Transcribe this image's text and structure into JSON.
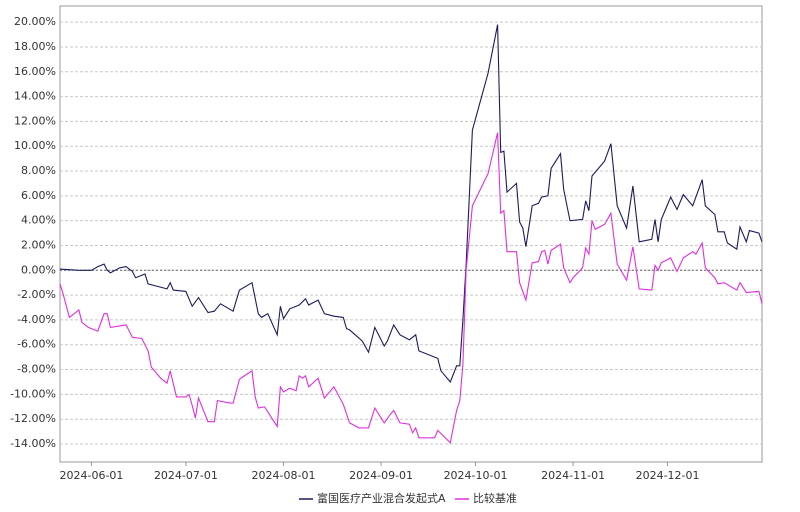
{
  "chart_data": {
    "type": "line",
    "xlim": [
      "2024-05-22",
      "2024-12-31"
    ],
    "xticks": [
      "2024-06-01",
      "2024-07-01",
      "2024-08-01",
      "2024-09-01",
      "2024-10-01",
      "2024-11-01",
      "2024-12-01"
    ],
    "ylim": [
      -15.45,
      21.3
    ],
    "yticks": [
      {
        "value": -14,
        "label": "-14.00%"
      },
      {
        "value": -12,
        "label": "-12.00%"
      },
      {
        "value": -10,
        "label": "-10.00%"
      },
      {
        "value": -8,
        "label": "-8.00%"
      },
      {
        "value": -6,
        "label": "-6.00%"
      },
      {
        "value": -4,
        "label": "-4.00%"
      },
      {
        "value": -2,
        "label": "-2.00%"
      },
      {
        "value": 0,
        "label": "0.00%"
      },
      {
        "value": 2,
        "label": "2.00%"
      },
      {
        "value": 4,
        "label": "4.00%"
      },
      {
        "value": 6,
        "label": "6.00%"
      },
      {
        "value": 8,
        "label": "8.00%"
      },
      {
        "value": 10,
        "label": "10.00%"
      },
      {
        "value": 12,
        "label": "12.00%"
      },
      {
        "value": 14,
        "label": "14.00%"
      },
      {
        "value": 16,
        "label": "16.00%"
      },
      {
        "value": 18,
        "label": "18.00%"
      },
      {
        "value": 20,
        "label": "20.00%"
      }
    ],
    "grid": true,
    "legend": "bottom",
    "series": [
      {
        "name": "富国医疗产业混合发起式A",
        "color": "#1c1c5c",
        "x": [
          "2024-05-22",
          "2024-05-28",
          "2024-06-01",
          "2024-06-03",
          "2024-06-05",
          "2024-06-06",
          "2024-06-07",
          "2024-06-10",
          "2024-06-12",
          "2024-06-14",
          "2024-06-15",
          "2024-06-18",
          "2024-06-19",
          "2024-06-22",
          "2024-06-25",
          "2024-06-26",
          "2024-06-27",
          "2024-07-01",
          "2024-07-03",
          "2024-07-05",
          "2024-07-08",
          "2024-07-10",
          "2024-07-12",
          "2024-07-16",
          "2024-07-18",
          "2024-07-22",
          "2024-07-24",
          "2024-07-25",
          "2024-07-27",
          "2024-07-30",
          "2024-07-31",
          "2024-08-01",
          "2024-08-03",
          "2024-08-06",
          "2024-08-08",
          "2024-08-09",
          "2024-08-12",
          "2024-08-14",
          "2024-08-17",
          "2024-08-20",
          "2024-08-21",
          "2024-08-22",
          "2024-08-26",
          "2024-08-28",
          "2024-08-30",
          "2024-09-02",
          "2024-09-03",
          "2024-09-05",
          "2024-09-07",
          "2024-09-10",
          "2024-09-12",
          "2024-09-13",
          "2024-09-19",
          "2024-09-20",
          "2024-09-23",
          "2024-09-25",
          "2024-09-26",
          "2024-09-27",
          "2024-09-28",
          "2024-09-30",
          "2024-10-05",
          "2024-10-08",
          "2024-10-09",
          "2024-10-10",
          "2024-10-11",
          "2024-10-14",
          "2024-10-15",
          "2024-10-16",
          "2024-10-17",
          "2024-10-19",
          "2024-10-21",
          "2024-10-22",
          "2024-10-24",
          "2024-10-25",
          "2024-10-28",
          "2024-10-29",
          "2024-10-31",
          "2024-11-04",
          "2024-11-05",
          "2024-11-06",
          "2024-11-07",
          "2024-11-11",
          "2024-11-13",
          "2024-11-15",
          "2024-11-18",
          "2024-11-20",
          "2024-11-22",
          "2024-11-26",
          "2024-11-27",
          "2024-11-28",
          "2024-11-29",
          "2024-12-02",
          "2024-12-04",
          "2024-12-06",
          "2024-12-09",
          "2024-12-12",
          "2024-12-13",
          "2024-12-16",
          "2024-12-17",
          "2024-12-19",
          "2024-12-20",
          "2024-12-23",
          "2024-12-24",
          "2024-12-26",
          "2024-12-27",
          "2024-12-30",
          "2024-12-31"
        ],
        "values": [
          0.1,
          0,
          0,
          0.3,
          0.5,
          0,
          -0.2,
          0.2,
          0.3,
          -0.1,
          -0.6,
          -0.3,
          -1.1,
          -1.3,
          -1.5,
          -1.0,
          -1.6,
          -1.7,
          -2.9,
          -2.2,
          -3.4,
          -3.3,
          -2.7,
          -3.3,
          -1.6,
          -1.0,
          -3.5,
          -3.8,
          -3.5,
          -5.2,
          -2.9,
          -3.9,
          -3.1,
          -2.8,
          -2.3,
          -2.8,
          -2.4,
          -3.5,
          -3.7,
          -3.8,
          -4.7,
          -4.8,
          -5.7,
          -6.6,
          -4.6,
          -6.1,
          -5.7,
          -4.4,
          -5.2,
          -5.6,
          -5.2,
          -6.5,
          -7.1,
          -8.1,
          -9.0,
          -7.7,
          -7.7,
          -4.0,
          0.4,
          11.3,
          15.9,
          19.8,
          9.5,
          9.6,
          6.3,
          7.0,
          3.9,
          3.4,
          1.9,
          5.2,
          5.4,
          5.9,
          6.0,
          8.2,
          9.4,
          6.5,
          4.0,
          4.1,
          5.6,
          4.8,
          7.6,
          8.8,
          10.2,
          5.2,
          3.4,
          6.8,
          2.3,
          2.5,
          4.1,
          2.3,
          4.1,
          5.9,
          4.9,
          6.1,
          5.2,
          7.3,
          5.2,
          4.5,
          3.1,
          3.1,
          2.2,
          1.7,
          3.5,
          2.3,
          3.2,
          3.0,
          2.3
        ]
      },
      {
        "name": "比较基准",
        "color": "#e22ee2",
        "x": [
          "2024-05-22",
          "2024-05-23",
          "2024-05-25",
          "2024-05-28",
          "2024-05-29",
          "2024-05-31",
          "2024-06-03",
          "2024-06-05",
          "2024-06-06",
          "2024-06-07",
          "2024-06-12",
          "2024-06-14",
          "2024-06-17",
          "2024-06-19",
          "2024-06-20",
          "2024-06-23",
          "2024-06-25",
          "2024-06-26",
          "2024-06-28",
          "2024-07-01",
          "2024-07-02",
          "2024-07-03",
          "2024-07-04",
          "2024-07-05",
          "2024-07-08",
          "2024-07-10",
          "2024-07-11",
          "2024-07-15",
          "2024-07-16",
          "2024-07-18",
          "2024-07-19",
          "2024-07-22",
          "2024-07-23",
          "2024-07-24",
          "2024-07-26",
          "2024-07-30",
          "2024-07-31",
          "2024-08-01",
          "2024-08-03",
          "2024-08-05",
          "2024-08-06",
          "2024-08-07",
          "2024-08-08",
          "2024-08-09",
          "2024-08-12",
          "2024-08-14",
          "2024-08-17",
          "2024-08-20",
          "2024-08-22",
          "2024-08-25",
          "2024-08-28",
          "2024-08-30",
          "2024-09-02",
          "2024-09-04",
          "2024-09-05",
          "2024-09-07",
          "2024-09-10",
          "2024-09-11",
          "2024-09-12",
          "2024-09-13",
          "2024-09-18",
          "2024-09-19",
          "2024-09-23",
          "2024-09-25",
          "2024-09-26",
          "2024-09-27",
          "2024-09-28",
          "2024-09-30",
          "2024-10-05",
          "2024-10-08",
          "2024-10-09",
          "2024-10-10",
          "2024-10-11",
          "2024-10-14",
          "2024-10-15",
          "2024-10-17",
          "2024-10-19",
          "2024-10-21",
          "2024-10-22",
          "2024-10-23",
          "2024-10-24",
          "2024-10-25",
          "2024-10-28",
          "2024-10-29",
          "2024-10-31",
          "2024-11-01",
          "2024-11-04",
          "2024-11-05",
          "2024-11-06",
          "2024-11-07",
          "2024-11-08",
          "2024-11-11",
          "2024-11-13",
          "2024-11-15",
          "2024-11-18",
          "2024-11-20",
          "2024-11-22",
          "2024-11-26",
          "2024-11-27",
          "2024-11-28",
          "2024-11-29",
          "2024-12-02",
          "2024-12-04",
          "2024-12-06",
          "2024-12-09",
          "2024-12-10",
          "2024-12-12",
          "2024-12-13",
          "2024-12-16",
          "2024-12-17",
          "2024-12-19",
          "2024-12-23",
          "2024-12-24",
          "2024-12-26",
          "2024-12-30",
          "2024-12-31"
        ],
        "values": [
          -1.1,
          -1.9,
          -3.8,
          -3.2,
          -4.2,
          -4.6,
          -4.9,
          -3.5,
          -3.5,
          -4.6,
          -4.4,
          -5.4,
          -5.5,
          -6.5,
          -7.8,
          -8.7,
          -9.1,
          -8.1,
          -10.2,
          -10.2,
          -10.0,
          -10.9,
          -11.9,
          -10.3,
          -12.2,
          -12.2,
          -10.5,
          -10.7,
          -10.7,
          -8.8,
          -8.6,
          -8.1,
          -10.2,
          -11.1,
          -11.0,
          -12.6,
          -9.4,
          -9.8,
          -9.5,
          -9.7,
          -8.5,
          -8.7,
          -8.5,
          -9.4,
          -8.7,
          -10.3,
          -9.4,
          -10.8,
          -12.3,
          -12.7,
          -12.7,
          -11.1,
          -12.3,
          -11.6,
          -11.3,
          -12.3,
          -12.4,
          -13.1,
          -12.7,
          -13.5,
          -13.5,
          -12.9,
          -13.9,
          -11.3,
          -10.5,
          -7.6,
          0,
          5.2,
          7.8,
          11.1,
          4.6,
          4.8,
          1.5,
          1.5,
          -1.0,
          -2.4,
          0.6,
          0.7,
          1.5,
          1.6,
          0.5,
          1.6,
          2.1,
          0.2,
          -1.0,
          -0.6,
          0.2,
          1.8,
          1.3,
          4.0,
          3.3,
          3.7,
          4.6,
          0.5,
          -0.8,
          1.9,
          -1.5,
          -1.6,
          0.4,
          0,
          0.6,
          1.0,
          -0.1,
          1.0,
          1.5,
          1.3,
          2.2,
          0.2,
          -0.6,
          -1.1,
          -1.0,
          -1.6,
          -1.0,
          -1.8,
          -1.7,
          -2.7
        ]
      }
    ]
  }
}
